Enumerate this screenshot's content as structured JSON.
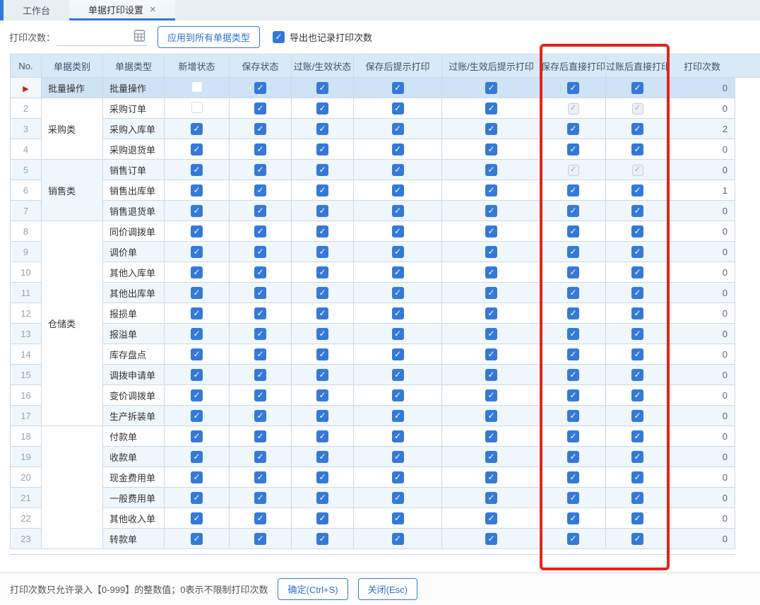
{
  "colors": {
    "accent": "#3579d8",
    "red": "#e1251b",
    "header_bg": "#d8e9f7",
    "sel_row": "#cfe3f6",
    "stripe": "#eff7fd",
    "grid": "#ccd9e5"
  },
  "icons": {
    "close": "×",
    "selected_row_marker": "▶",
    "check": "✓",
    "calculator": "calculator-grid-icon"
  },
  "tabs": [
    {
      "label": "工作台",
      "active": false
    },
    {
      "label": "单据打印设置",
      "active": true
    }
  ],
  "toolbar": {
    "print_count_label": "打印次数：",
    "print_count_value": "",
    "apply_button": "应用到所有单据类型",
    "export_checkbox_label": "导出也记录打印次数",
    "export_checkbox_checked": true
  },
  "table": {
    "columns": [
      "No.",
      "单据类别",
      "单据类型",
      "新增状态",
      "保存状态",
      "过账/生效状态",
      "保存后提示打印",
      "过账/生效后提示打印",
      "保存后直接打印",
      "过账后直接打印",
      "打印次数"
    ],
    "checkbox_state_legend": {
      "c": "checked",
      "u": "unchecked",
      "d": "checked-disabled"
    },
    "rows": [
      {
        "no": "1",
        "marker": "arrow",
        "selected": true,
        "category": {
          "label": "批量操作",
          "span": 1
        },
        "type": "批量操作",
        "new": "u",
        "save": "c",
        "post": "c",
        "save_prompt": "c",
        "post_prompt": "c",
        "save_direct": "c",
        "post_direct": "c",
        "count": "0"
      },
      {
        "no": "2",
        "category": {
          "label": "采购类",
          "span": 3
        },
        "type": "采购订单",
        "new": "u",
        "save": "c",
        "post": "c",
        "save_prompt": "c",
        "post_prompt": "c",
        "save_direct": "d",
        "post_direct": "d",
        "count": "0"
      },
      {
        "no": "3",
        "type": "采购入库单",
        "new": "c",
        "save": "c",
        "post": "c",
        "save_prompt": "c",
        "post_prompt": "c",
        "save_direct": "c",
        "post_direct": "c",
        "count": "2"
      },
      {
        "no": "4",
        "type": "采购退货单",
        "new": "c",
        "save": "c",
        "post": "c",
        "save_prompt": "c",
        "post_prompt": "c",
        "save_direct": "c",
        "post_direct": "c",
        "count": "0"
      },
      {
        "no": "5",
        "category": {
          "label": "销售类",
          "span": 3
        },
        "type": "销售订单",
        "new": "c",
        "save": "c",
        "post": "c",
        "save_prompt": "c",
        "post_prompt": "c",
        "save_direct": "d",
        "post_direct": "d",
        "count": "0"
      },
      {
        "no": "6",
        "type": "销售出库单",
        "new": "c",
        "save": "c",
        "post": "c",
        "save_prompt": "c",
        "post_prompt": "c",
        "save_direct": "c",
        "post_direct": "c",
        "count": "1"
      },
      {
        "no": "7",
        "type": "销售退货单",
        "new": "c",
        "save": "c",
        "post": "c",
        "save_prompt": "c",
        "post_prompt": "c",
        "save_direct": "c",
        "post_direct": "c",
        "count": "0"
      },
      {
        "no": "8",
        "category": {
          "label": "仓储类",
          "span": 10
        },
        "type": "同价调拨单",
        "new": "c",
        "save": "c",
        "post": "c",
        "save_prompt": "c",
        "post_prompt": "c",
        "save_direct": "c",
        "post_direct": "c",
        "count": "0"
      },
      {
        "no": "9",
        "type": "调价单",
        "new": "c",
        "save": "c",
        "post": "c",
        "save_prompt": "c",
        "post_prompt": "c",
        "save_direct": "c",
        "post_direct": "c",
        "count": "0"
      },
      {
        "no": "10",
        "type": "其他入库单",
        "new": "c",
        "save": "c",
        "post": "c",
        "save_prompt": "c",
        "post_prompt": "c",
        "save_direct": "c",
        "post_direct": "c",
        "count": "0"
      },
      {
        "no": "11",
        "type": "其他出库单",
        "new": "c",
        "save": "c",
        "post": "c",
        "save_prompt": "c",
        "post_prompt": "c",
        "save_direct": "c",
        "post_direct": "c",
        "count": "0"
      },
      {
        "no": "12",
        "type": "报损单",
        "new": "c",
        "save": "c",
        "post": "c",
        "save_prompt": "c",
        "post_prompt": "c",
        "save_direct": "c",
        "post_direct": "c",
        "count": "0"
      },
      {
        "no": "13",
        "type": "报溢单",
        "new": "c",
        "save": "c",
        "post": "c",
        "save_prompt": "c",
        "post_prompt": "c",
        "save_direct": "c",
        "post_direct": "c",
        "count": "0"
      },
      {
        "no": "14",
        "type": "库存盘点",
        "new": "c",
        "save": "c",
        "post": "c",
        "save_prompt": "c",
        "post_prompt": "c",
        "save_direct": "c",
        "post_direct": "c",
        "count": "0"
      },
      {
        "no": "15",
        "type": "调拨申请单",
        "new": "c",
        "save": "c",
        "post": "c",
        "save_prompt": "c",
        "post_prompt": "c",
        "save_direct": "c",
        "post_direct": "c",
        "count": "0"
      },
      {
        "no": "16",
        "type": "变价调拨单",
        "new": "c",
        "save": "c",
        "post": "c",
        "save_prompt": "c",
        "post_prompt": "c",
        "save_direct": "c",
        "post_direct": "c",
        "count": "0"
      },
      {
        "no": "17",
        "type": "生产拆装单",
        "new": "c",
        "save": "c",
        "post": "c",
        "save_prompt": "c",
        "post_prompt": "c",
        "save_direct": "c",
        "post_direct": "c",
        "count": "0"
      },
      {
        "no": "18",
        "category": {
          "label": "",
          "span": 6
        },
        "type": "付款单",
        "new": "c",
        "save": "c",
        "post": "c",
        "save_prompt": "c",
        "post_prompt": "c",
        "save_direct": "c",
        "post_direct": "c",
        "count": "0"
      },
      {
        "no": "19",
        "type": "收款单",
        "new": "c",
        "save": "c",
        "post": "c",
        "save_prompt": "c",
        "post_prompt": "c",
        "save_direct": "c",
        "post_direct": "c",
        "count": "0"
      },
      {
        "no": "20",
        "type": "现金费用单",
        "new": "c",
        "save": "c",
        "post": "c",
        "save_prompt": "c",
        "post_prompt": "c",
        "save_direct": "c",
        "post_direct": "c",
        "count": "0"
      },
      {
        "no": "21",
        "type": "一般费用单",
        "new": "c",
        "save": "c",
        "post": "c",
        "save_prompt": "c",
        "post_prompt": "c",
        "save_direct": "c",
        "post_direct": "c",
        "count": "0"
      },
      {
        "no": "22",
        "type": "其他收入单",
        "new": "c",
        "save": "c",
        "post": "c",
        "save_prompt": "c",
        "post_prompt": "c",
        "save_direct": "c",
        "post_direct": "c",
        "count": "0"
      },
      {
        "no": "23",
        "type": "转款单",
        "new": "c",
        "save": "c",
        "post": "c",
        "save_prompt": "c",
        "post_prompt": "c",
        "save_direct": "c",
        "post_direct": "c",
        "count": "0"
      }
    ]
  },
  "footer": {
    "hint": "打印次数只允许录入【0-999】的整数值；0表示不限制打印次数",
    "ok_button": "确定(Ctrl+S)",
    "close_button": "关闭(Esc)"
  }
}
